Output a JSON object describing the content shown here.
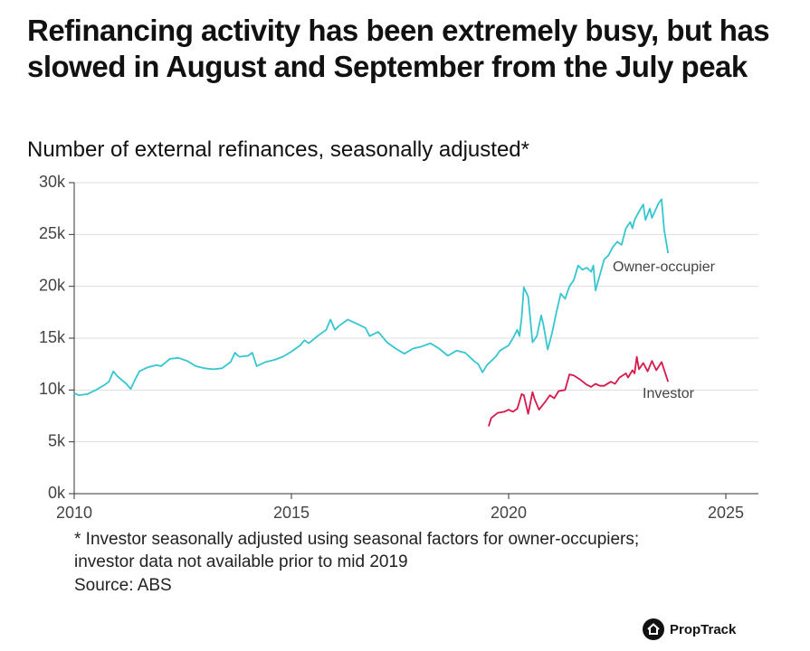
{
  "chart_data": {
    "type": "line",
    "title": "Refinancing activity has been extremely busy, but has slowed in August and September from the July peak",
    "subtitle": "Number of external refinances, seasonally adjusted*",
    "notes": [
      "* Investor seasonally adjusted using seasonal factors for owner-occupiers;",
      "investor data not available prior to mid 2019"
    ],
    "source": "Source: ABS",
    "logo": "PropTrack",
    "xlim": [
      2010,
      2025.75
    ],
    "xticks": [
      2010,
      2015,
      2020,
      2025
    ],
    "ylim": [
      0,
      30000
    ],
    "yticks": [
      {
        "value": 0,
        "label": "0k"
      },
      {
        "value": 5000,
        "label": "5k"
      },
      {
        "value": 10000,
        "label": "10k"
      },
      {
        "value": 15000,
        "label": "15k"
      },
      {
        "value": 20000,
        "label": "20k"
      },
      {
        "value": 25000,
        "label": "25k"
      },
      {
        "value": 30000,
        "label": "30k"
      }
    ],
    "grid": true,
    "series": [
      {
        "name": "Owner-occupier",
        "color": "#35c6cf",
        "x": [
          2010.0,
          2010.1,
          2010.3,
          2010.5,
          2010.7,
          2010.8,
          2010.9,
          2011.0,
          2011.2,
          2011.3,
          2011.4,
          2011.5,
          2011.7,
          2011.9,
          2012.0,
          2012.2,
          2012.4,
          2012.6,
          2012.8,
          2013.0,
          2013.2,
          2013.4,
          2013.6,
          2013.7,
          2013.8,
          2014.0,
          2014.1,
          2014.2,
          2014.4,
          2014.6,
          2014.8,
          2015.0,
          2015.2,
          2015.3,
          2015.4,
          2015.6,
          2015.8,
          2015.9,
          2016.0,
          2016.1,
          2016.3,
          2016.5,
          2016.7,
          2016.8,
          2017.0,
          2017.2,
          2017.4,
          2017.6,
          2017.8,
          2018.0,
          2018.2,
          2018.4,
          2018.6,
          2018.8,
          2019.0,
          2019.2,
          2019.3,
          2019.4,
          2019.5,
          2019.7,
          2019.8,
          2020.0,
          2020.1,
          2020.2,
          2020.25,
          2020.3,
          2020.35,
          2020.45,
          2020.55,
          2020.65,
          2020.75,
          2020.8,
          2020.9,
          2021.0,
          2021.1,
          2021.2,
          2021.3,
          2021.4,
          2021.5,
          2021.6,
          2021.7,
          2021.8,
          2021.9,
          2021.95,
          2022.0,
          2022.1,
          2022.2,
          2022.3,
          2022.4,
          2022.5,
          2022.6,
          2022.7,
          2022.8,
          2022.85,
          2022.9,
          2023.0,
          2023.1,
          2023.15,
          2023.25,
          2023.3,
          2023.45,
          2023.52,
          2023.58,
          2023.67
        ],
        "values": [
          9700,
          9500,
          9600,
          10000,
          10500,
          10800,
          11800,
          11300,
          10600,
          10100,
          11000,
          11800,
          12200,
          12400,
          12300,
          13000,
          13100,
          12800,
          12300,
          12100,
          12000,
          12100,
          12700,
          13600,
          13200,
          13300,
          13600,
          12300,
          12700,
          12900,
          13200,
          13700,
          14300,
          14800,
          14500,
          15200,
          15800,
          16800,
          15800,
          16200,
          16800,
          16400,
          16000,
          15200,
          15600,
          14600,
          14000,
          13500,
          14000,
          14200,
          14500,
          14000,
          13300,
          13800,
          13600,
          12800,
          12500,
          11700,
          12400,
          13200,
          13800,
          14300,
          15000,
          15800,
          15200,
          17000,
          19900,
          19000,
          14600,
          15200,
          17200,
          16300,
          13900,
          15500,
          17500,
          19300,
          18800,
          20000,
          20600,
          22000,
          21600,
          21800,
          21400,
          22000,
          19600,
          21100,
          22600,
          23000,
          23800,
          24300,
          24000,
          25600,
          26200,
          25600,
          26400,
          27200,
          27900,
          26400,
          27500,
          26600,
          28000,
          28400,
          25500,
          23200
        ]
      },
      {
        "name": "Investor",
        "color": "#d6184a",
        "x": [
          2019.54,
          2019.6,
          2019.75,
          2019.9,
          2020.0,
          2020.1,
          2020.2,
          2020.3,
          2020.35,
          2020.45,
          2020.55,
          2020.6,
          2020.7,
          2020.85,
          2020.95,
          2021.05,
          2021.15,
          2021.3,
          2021.4,
          2021.5,
          2021.65,
          2021.8,
          2021.9,
          2022.0,
          2022.1,
          2022.2,
          2022.35,
          2022.45,
          2022.55,
          2022.7,
          2022.75,
          2022.85,
          2022.9,
          2022.95,
          2023.0,
          2023.1,
          2023.2,
          2023.3,
          2023.4,
          2023.52,
          2023.67
        ],
        "values": [
          6500,
          7300,
          7800,
          7900,
          8100,
          7900,
          8200,
          9600,
          9500,
          7700,
          9800,
          9100,
          8100,
          8900,
          9500,
          9200,
          9900,
          10000,
          11500,
          11400,
          11000,
          10500,
          10300,
          10600,
          10400,
          10400,
          10800,
          10600,
          11200,
          11600,
          11200,
          11900,
          11600,
          13200,
          12000,
          12600,
          11800,
          12800,
          11900,
          12700,
          10800
        ]
      }
    ]
  }
}
